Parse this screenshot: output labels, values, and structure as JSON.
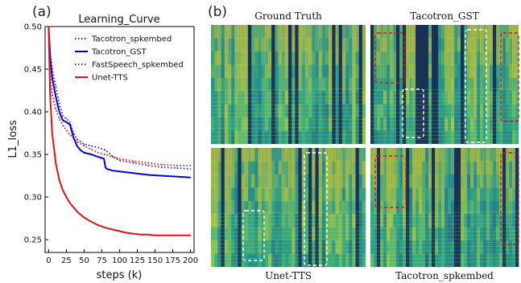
{
  "panel_a_label": "(a)",
  "panel_b_label": "(b)",
  "chart_data": {
    "type": "line",
    "title": "Learning_Curve",
    "xlabel": "steps (k)",
    "ylabel": "L1_loss",
    "xlim": [
      -5,
      205
    ],
    "ylim": [
      0.235,
      0.5
    ],
    "xticks": [
      "0",
      "25",
      "50",
      "75",
      "100",
      "125",
      "150",
      "175",
      "200"
    ],
    "yticks": [
      "0.25",
      "0.30",
      "0.35",
      "0.40",
      "0.45",
      "0.50"
    ],
    "legend_position": "top-right",
    "series": [
      {
        "name": "Tacotron_spkembed",
        "color": "#1f1fe0",
        "style": "dotted",
        "x": [
          0,
          2,
          5,
          10,
          15,
          20,
          25,
          30,
          35,
          40,
          45,
          50,
          60,
          70,
          80,
          90,
          100,
          120,
          140,
          160,
          180,
          200
        ],
        "y": [
          0.5,
          0.47,
          0.45,
          0.43,
          0.41,
          0.395,
          0.392,
          0.388,
          0.375,
          0.368,
          0.365,
          0.362,
          0.36,
          0.358,
          0.355,
          0.348,
          0.343,
          0.34,
          0.337,
          0.335,
          0.334,
          0.333
        ]
      },
      {
        "name": "Tacotron_GST",
        "color": "#0000ee",
        "style": "solid",
        "x": [
          0,
          2,
          5,
          10,
          15,
          20,
          25,
          30,
          35,
          40,
          45,
          50,
          60,
          70,
          78,
          80,
          82,
          90,
          100,
          120,
          140,
          160,
          180,
          200
        ],
        "y": [
          0.5,
          0.465,
          0.44,
          0.418,
          0.4,
          0.39,
          0.388,
          0.385,
          0.37,
          0.36,
          0.355,
          0.352,
          0.35,
          0.347,
          0.345,
          0.335,
          0.333,
          0.331,
          0.33,
          0.328,
          0.326,
          0.325,
          0.324,
          0.323
        ]
      },
      {
        "name": "FastSpeech_spkembed",
        "color": "#e81010",
        "style": "dotted",
        "x": [
          0,
          2,
          5,
          10,
          15,
          20,
          30,
          40,
          50,
          60,
          70,
          80,
          90,
          100,
          120,
          140,
          160,
          180,
          200
        ],
        "y": [
          0.48,
          0.445,
          0.42,
          0.403,
          0.392,
          0.384,
          0.373,
          0.365,
          0.36,
          0.356,
          0.352,
          0.35,
          0.347,
          0.345,
          0.342,
          0.34,
          0.338,
          0.337,
          0.337
        ]
      },
      {
        "name": "Unet-TTS",
        "color": "#e81010",
        "style": "solid",
        "x": [
          0,
          2,
          5,
          10,
          15,
          20,
          25,
          30,
          40,
          50,
          60,
          70,
          80,
          90,
          100,
          110,
          120,
          130,
          140,
          150,
          160,
          180,
          200
        ],
        "y": [
          0.5,
          0.42,
          0.375,
          0.34,
          0.32,
          0.308,
          0.3,
          0.293,
          0.283,
          0.276,
          0.271,
          0.267,
          0.264,
          0.262,
          0.26,
          0.258,
          0.257,
          0.256,
          0.256,
          0.255,
          0.255,
          0.255,
          0.255
        ]
      }
    ]
  },
  "spectrograms": [
    {
      "label": "Ground Truth",
      "label_position": "top",
      "seed": 3,
      "boxes": []
    },
    {
      "label": "Tacotron_GST",
      "label_position": "top",
      "seed": 7,
      "boxes": [
        {
          "color": "#cc1a1a",
          "style": "red-dashed"
        },
        {
          "color": "#ffffff",
          "style": "white-dashed"
        },
        {
          "color": "#ffffff",
          "style": "white-dashed"
        },
        {
          "color": "#cc1a1a",
          "style": "red-dashed"
        }
      ]
    },
    {
      "label": "Unet-TTS",
      "label_position": "bottom",
      "seed": 11,
      "boxes": [
        {
          "color": "#ffffff",
          "style": "white-dashed"
        },
        {
          "color": "#ffffff",
          "style": "white-dashed"
        }
      ]
    },
    {
      "label": "Tacotron_spkembed",
      "label_position": "bottom",
      "seed": 19,
      "boxes": [
        {
          "color": "#cc1a1a",
          "style": "red-dashed"
        },
        {
          "color": "#cc1a1a",
          "style": "red-dashed"
        }
      ]
    }
  ]
}
